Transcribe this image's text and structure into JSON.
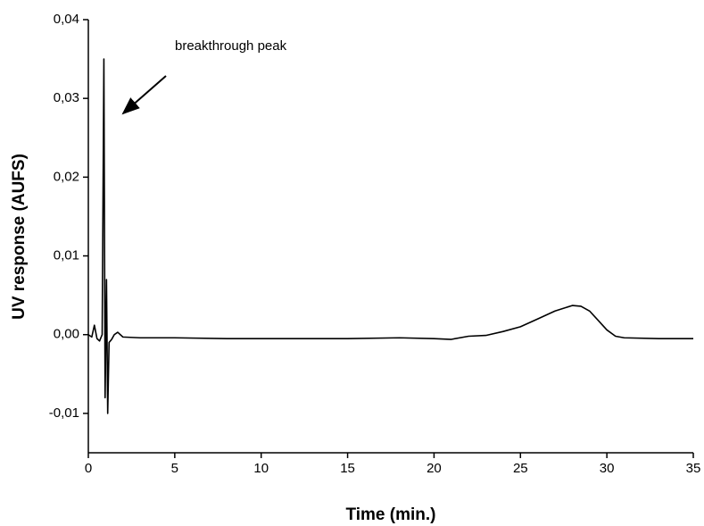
{
  "chart_data": {
    "type": "line",
    "xlabel": "Time (min.)",
    "ylabel": "UV response (AUFS)",
    "annotation": "breakthrough peak",
    "color": "#000000",
    "x": [
      0,
      0.2,
      0.35,
      0.5,
      0.65,
      0.8,
      0.9,
      0.97,
      1.05,
      1.12,
      1.2,
      1.35,
      1.5,
      1.7,
      2,
      3,
      5,
      8,
      10,
      12,
      15,
      18,
      20,
      21,
      22,
      23,
      24,
      25,
      26,
      27,
      28,
      28.5,
      29,
      29.5,
      30,
      30.5,
      31,
      33,
      35
    ],
    "values": [
      0,
      -0.0003,
      0.0012,
      -0.0005,
      -0.0008,
      0,
      0.035,
      -0.008,
      0.007,
      -0.01,
      -0.001,
      -0.0006,
      0,
      0.0003,
      -0.0003,
      -0.0004,
      -0.0004,
      -0.0005,
      -0.0005,
      -0.0005,
      -0.0005,
      -0.0004,
      -0.0005,
      -0.0006,
      -0.0002,
      -0.0001,
      0.0004,
      0.001,
      0.002,
      0.003,
      0.0037,
      0.0036,
      0.003,
      0.0018,
      0.0006,
      -0.0002,
      -0.0004,
      -0.0005,
      -0.0005
    ],
    "xlim": [
      0,
      35
    ],
    "xticks": [
      0,
      5,
      10,
      15,
      20,
      25,
      30,
      35
    ],
    "ylim": [
      -0.015,
      0.04
    ],
    "yticks": [
      {
        "value": -0.01,
        "label": "-0,01"
      },
      {
        "value": 0,
        "label": "0,00"
      },
      {
        "value": 0.01,
        "label": "0,01"
      },
      {
        "value": 0.02,
        "label": "0,02"
      },
      {
        "value": 0.03,
        "label": "0,03"
      },
      {
        "value": 0.04,
        "label": "0,04"
      }
    ],
    "grid": false
  }
}
